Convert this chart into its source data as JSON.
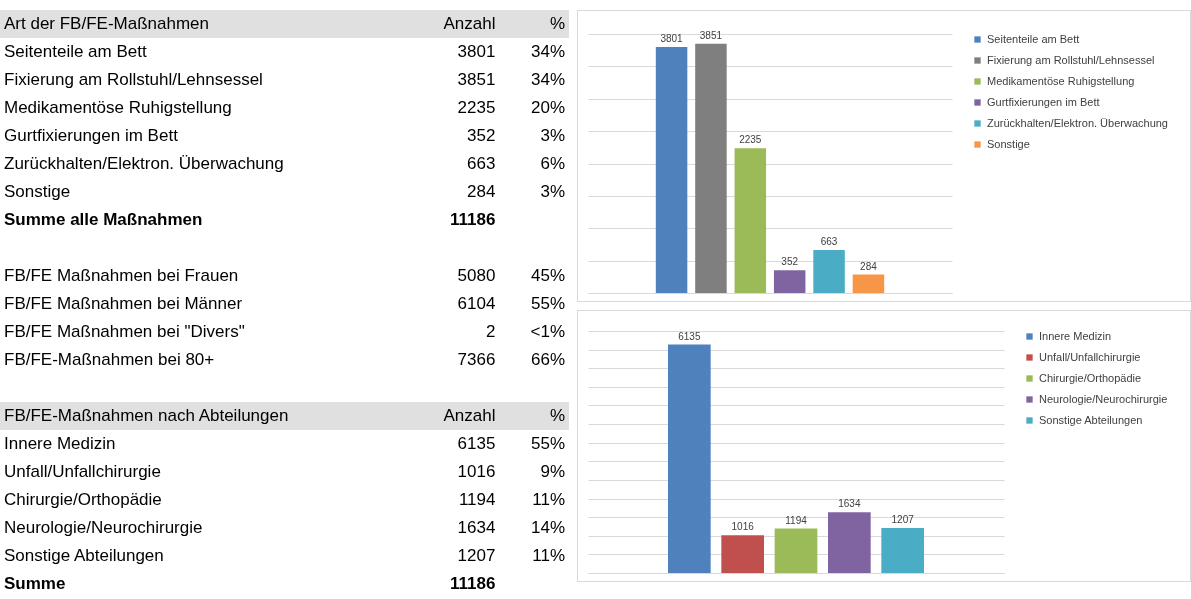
{
  "chart_data": [
    {
      "type": "other",
      "cell_labels": [
        [
          "Art der FB/FE-Maßnahmen",
          "Anzahl",
          "%"
        ],
        [
          "Seitenteile am Bett",
          "3801",
          "34%"
        ],
        [
          "Fixierung am Rollstuhl/Lehnsessel",
          "3851",
          "34%"
        ],
        [
          "Medikamentöse Ruhigstellung",
          "2235",
          "20%"
        ],
        [
          "Gurtfixierungen im Bett",
          "352",
          "3%"
        ],
        [
          "Zurückhalten/Elektron. Überwachung",
          "663",
          "6%"
        ],
        [
          "Sonstige",
          "284",
          "3%"
        ],
        [
          "Summe alle Maßnahmen",
          "11186",
          null
        ],
        [
          null,
          null,
          null
        ],
        [
          "FB/FE Maßnahmen bei Frauen",
          "5080",
          "45%"
        ],
        [
          "FB/FE Maßnahmen bei Männer",
          "6104",
          "55%"
        ],
        [
          "FB/FE Maßnahmen bei \"Divers\"",
          "2",
          "<1%"
        ],
        [
          "FB/FE-Maßnahmen bei 80+",
          "7366",
          "66%"
        ],
        [
          null,
          null,
          null
        ],
        [
          "FB/FE-Maßnahmen nach Abteilungen",
          "Anzahl",
          "%"
        ],
        [
          "Innere Medizin",
          "6135",
          "55%"
        ],
        [
          "Unfall/Unfallchirurgie",
          "1016",
          "9%"
        ],
        [
          "Chirurgie/Orthopädie",
          "1194",
          "11%"
        ],
        [
          "Neurologie/Neurochirurgie",
          "1634",
          "14%"
        ],
        [
          "Sonstige Abteilungen",
          "1207",
          "11%"
        ],
        [
          "Summe",
          "11186",
          null
        ]
      ]
    },
    {
      "type": "bar",
      "categories": [
        null
      ],
      "series": [
        {
          "name": "Seitenteile am Bett",
          "color": "#4f81bd",
          "values": [
            3801
          ]
        },
        {
          "name": "Fixierung am Rollstuhl/Lehnsessel",
          "color": "#7f7f7f",
          "values": [
            3851
          ]
        },
        {
          "name": "Medikamentöse Ruhigstellung",
          "color": "#9bbb59",
          "values": [
            2235
          ]
        },
        {
          "name": "Gurtfixierungen im Bett",
          "color": "#8064a2",
          "values": [
            352
          ]
        },
        {
          "name": "Zurückhalten/Elektron. Überwachung",
          "color": "#4bacc6",
          "values": [
            663
          ]
        },
        {
          "name": "Sonstige",
          "color": "#f79646",
          "values": [
            284
          ]
        }
      ],
      "data_labels": true,
      "grid": "y",
      "legend": "right",
      "tick_labels": false
    },
    {
      "type": "bar",
      "categories": [
        null
      ],
      "series": [
        {
          "name": "Innere Medizin",
          "color": "#4f81bd",
          "values": [
            6135
          ]
        },
        {
          "name": "Unfall/Unfallchirurgie",
          "color": "#c0504d",
          "values": [
            1016
          ]
        },
        {
          "name": "Chirurgie/Orthopädie",
          "color": "#9bbb59",
          "values": [
            1194
          ]
        },
        {
          "name": "Neurologie/Neurochirurgie",
          "color": "#8064a2",
          "values": [
            1634
          ]
        },
        {
          "name": "Sonstige Abteilungen",
          "color": "#4bacc6",
          "values": [
            1207
          ]
        }
      ],
      "data_labels": true,
      "grid": "y",
      "legend": "right",
      "tick_labels": false
    }
  ]
}
